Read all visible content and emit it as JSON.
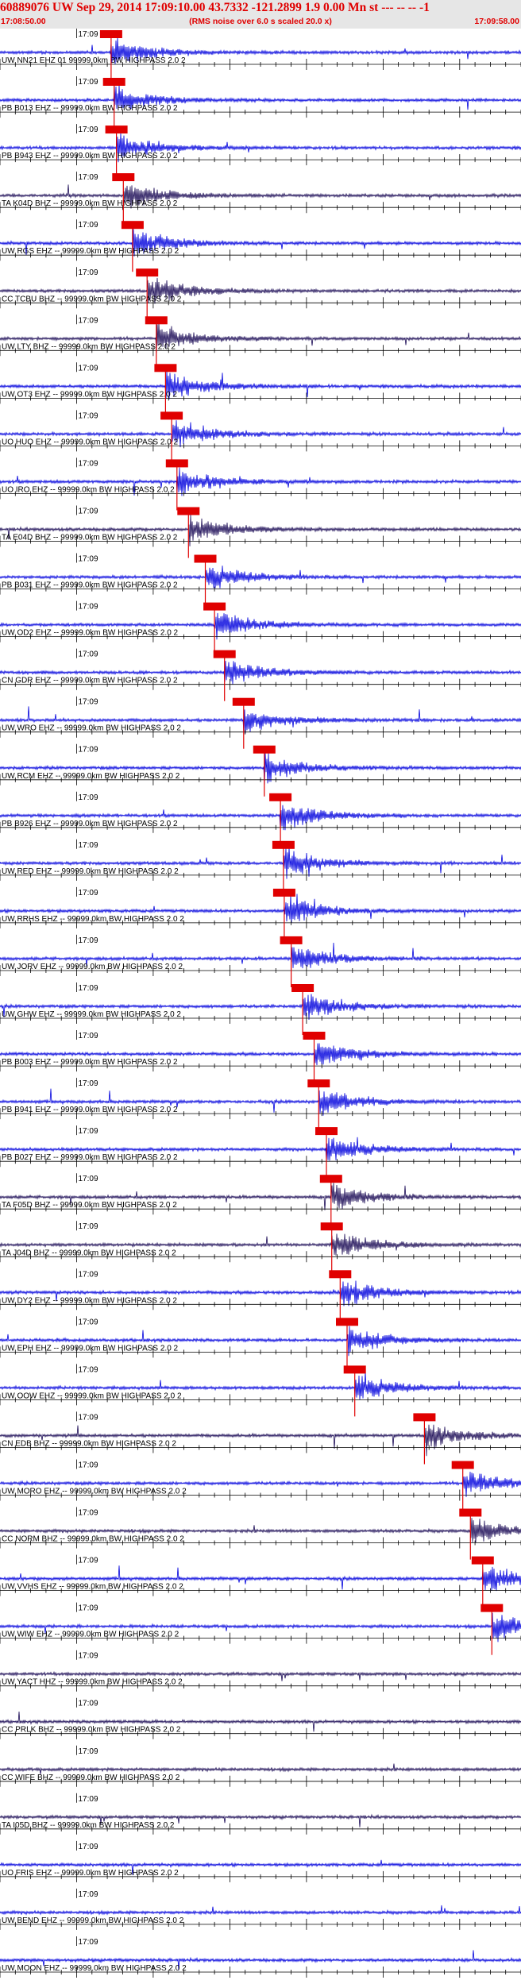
{
  "header": {
    "title": "60889076 UW Sep 29, 2014 17:09:10.00   43.7332 -121.2899  1.9 0.00 Mn st --- -- -- -1",
    "start_time": "17:08:50.00",
    "noise_note": "(RMS noise over 6.0 s scaled 20.0 x)",
    "end_time": "17:09:58.00"
  },
  "chart_data": {
    "type": "seismogram",
    "x_unit": "time (UTC)",
    "x_start": "17:08:50.00",
    "x_end": "17:09:58.00",
    "minute_label": "17:09",
    "colors": {
      "trace_primary": "#0000dd",
      "trace_secondary": "#1a0a55",
      "pick": "#e00000",
      "axis": "#000000",
      "text": "#e00000"
    },
    "traces": [
      {
        "label": "UW NN21 EHZ 01 99999.0km BW  HIGHPASS  2.0  2",
        "color": "blue",
        "pick_time": 14.5
      },
      {
        "label": "PB B013 EHZ -- 99999.0km BW  HIGHPASS  2.0  2",
        "color": "blue",
        "pick_time": 14.9
      },
      {
        "label": "PB B943 EHZ -- 99999.0km BW  HIGHPASS  2.0  2",
        "color": "blue",
        "pick_time": 15.2
      },
      {
        "label": "TA K04D BHZ -- 99999.0km BW  HIGHPASS  2.0  2",
        "color": "dark",
        "pick_time": 16.1
      },
      {
        "label": "UW RGS EHZ -- 99999.0km BW  HIGHPASS  2.0  2",
        "color": "blue",
        "pick_time": 17.3
      },
      {
        "label": "CC TCBU BHZ -- 99999.0km BW  HIGHPASS  2.0  2",
        "color": "dark",
        "pick_time": 19.2
      },
      {
        "label": "UW LTY BHZ -- 99999.0km BW  HIGHPASS  2.0  2",
        "color": "dark",
        "pick_time": 20.4
      },
      {
        "label": "UW OT3 EHZ -- 99999.0km BW  HIGHPASS  2.0  2",
        "color": "blue",
        "pick_time": 21.6
      },
      {
        "label": "UO HUO EHZ -- 99999.0km BW  HIGHPASS  2.0  2",
        "color": "blue",
        "pick_time": 22.4
      },
      {
        "label": "UO IRO EHZ -- 99999.0km BW  HIGHPASS  2.0  2",
        "color": "blue",
        "pick_time": 23.1
      },
      {
        "label": "TA E04D BHZ -- 99999.0km BW  HIGHPASS  2.0  2",
        "color": "dark",
        "pick_time": 24.6
      },
      {
        "label": "PB B031 EHZ -- 99999.0km BW  HIGHPASS  2.0  2",
        "color": "blue",
        "pick_time": 26.8
      },
      {
        "label": "UW OD2 EHZ -- 99999.0km BW  HIGHPASS  2.0  2",
        "color": "blue",
        "pick_time": 28.0
      },
      {
        "label": "CN GDR EHZ -- 99999.0km BW  HIGHPASS  2.0  2",
        "color": "blue",
        "pick_time": 29.3
      },
      {
        "label": "UW WRO EHZ -- 99999.0km BW  HIGHPASS  2.0  2",
        "color": "blue",
        "pick_time": 31.8
      },
      {
        "label": "UW RCM EHZ -- 99999.0km BW  HIGHPASS  2.0  2",
        "color": "blue",
        "pick_time": 34.5
      },
      {
        "label": "PB B926 EHZ -- 99999.0km BW  HIGHPASS  2.0  2",
        "color": "blue",
        "pick_time": 36.6
      },
      {
        "label": "UW RED EHZ -- 99999.0km BW  HIGHPASS  2.0  2",
        "color": "blue",
        "pick_time": 37.0
      },
      {
        "label": "UW RRHS EHZ -- 99999.0km BW  HIGHPASS  2.0  2",
        "color": "blue",
        "pick_time": 37.1
      },
      {
        "label": "UW JORV EHZ -- 99999.0km BW  HIGHPASS  2.0  2",
        "color": "blue",
        "pick_time": 38.0
      },
      {
        "label": "UW GHW EHZ -- 99999.0km BW  HIGHPASS  2.0  2",
        "color": "blue",
        "pick_time": 39.5
      },
      {
        "label": "PB B003 EHZ -- 99999.0km BW  HIGHPASS  2.0  2",
        "color": "blue",
        "pick_time": 41.0
      },
      {
        "label": "PB B941 EHZ -- 99999.0km BW  HIGHPASS  2.0  2",
        "color": "blue",
        "pick_time": 41.6
      },
      {
        "label": "PB B027 EHZ -- 99999.0km BW  HIGHPASS  2.0  2",
        "color": "blue",
        "pick_time": 42.6
      },
      {
        "label": "TA F05D BHZ -- 99999.0km BW  HIGHPASS  2.0  2",
        "color": "dark",
        "pick_time": 43.2
      },
      {
        "label": "TA J04D BHZ -- 99999.0km BW  HIGHPASS  2.0  2",
        "color": "dark",
        "pick_time": 43.3
      },
      {
        "label": "UW DY2 EHZ -- 99999.0km BW  HIGHPASS  2.0  2",
        "color": "blue",
        "pick_time": 44.4
      },
      {
        "label": "UW EPH EHZ -- 99999.0km BW  HIGHPASS  2.0  2",
        "color": "blue",
        "pick_time": 45.3
      },
      {
        "label": "UW OOW EHZ -- 99999.0km BW  HIGHPASS  2.0  2",
        "color": "blue",
        "pick_time": 46.3
      },
      {
        "label": "CN EDB BHZ -- 99999.0km BW  HIGHPASS  2.0  2",
        "color": "dark",
        "pick_time": 55.4
      },
      {
        "label": "UW MORO EHZ -- 99999.0km BW  HIGHPASS  2.0  2",
        "color": "blue",
        "pick_time": 60.4
      },
      {
        "label": "CC NORM BHZ -- 99999.0km BW  HIGHPASS  2.0  2",
        "color": "dark",
        "pick_time": 61.4
      },
      {
        "label": "UW VVHS EHZ -- 99999.0km BW  HIGHPASS  2.0  2",
        "color": "blue",
        "pick_time": 63.0
      },
      {
        "label": "UW WIW EHZ -- 99999.0km BW  HIGHPASS  2.0  2",
        "color": "blue",
        "pick_time": 64.2
      },
      {
        "label": "UW YACT HHZ -- 99999.0km BW  HIGHPASS  2.0  2",
        "color": "dark",
        "pick_time": null
      },
      {
        "label": "CC PRLK BHZ -- 99999.0km BW  HIGHPASS  2.0  2",
        "color": "dark",
        "pick_time": null
      },
      {
        "label": "CC WIFE BHZ -- 99999.0km BW  HIGHPASS  2.0  2",
        "color": "dark",
        "pick_time": null
      },
      {
        "label": "TA I05D BHZ -- 99999.0km BW  HIGHPASS  2.0  2",
        "color": "dark",
        "pick_time": null
      },
      {
        "label": "UO FRIS EHZ -- 99999.0km BW  HIGHPASS  2.0  2",
        "color": "blue",
        "pick_time": null
      },
      {
        "label": "UW BEND EHZ -- 99999.0km BW  HIGHPASS  2.0  2",
        "color": "blue",
        "pick_time": null
      },
      {
        "label": "UW MOON EHZ -- 99999.0km BW  HIGHPASS  2.0  2",
        "color": "blue",
        "pick_time": null
      }
    ]
  }
}
